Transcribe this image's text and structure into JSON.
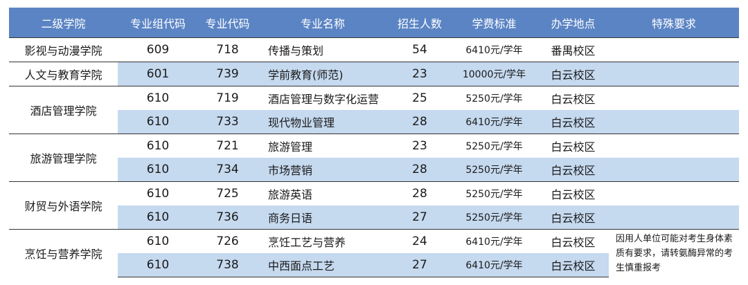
{
  "headers": [
    "二级学院",
    "专业组代码",
    "专业代码",
    "专业名称",
    "招生人数",
    "学费标准",
    "办学地点",
    "特殊要求"
  ],
  "groups": [
    {
      "college": "影视与动漫学院",
      "rows": [
        {
          "group_code": "609",
          "major_code": "718",
          "major_name": "传播与策划",
          "enrollment": "54",
          "tuition": "6410元/学年",
          "campus": "番禺校区"
        }
      ]
    },
    {
      "college": "人文与教育学院",
      "rows": [
        {
          "group_code": "601",
          "major_code": "739",
          "major_name": "学前教育(师范)",
          "enrollment": "23",
          "tuition": "10000元/学年",
          "campus": "白云校区"
        }
      ]
    },
    {
      "college": "酒店管理学院",
      "rows": [
        {
          "group_code": "610",
          "major_code": "719",
          "major_name": "酒店管理与数字化运营",
          "enrollment": "25",
          "tuition": "5250元/学年",
          "campus": "白云校区"
        },
        {
          "group_code": "610",
          "major_code": "733",
          "major_name": "现代物业管理",
          "enrollment": "28",
          "tuition": "6410元/学年",
          "campus": "白云校区"
        }
      ]
    },
    {
      "college": "旅游管理学院",
      "rows": [
        {
          "group_code": "610",
          "major_code": "721",
          "major_name": "旅游管理",
          "enrollment": "23",
          "tuition": "5250元/学年",
          "campus": "白云校区"
        },
        {
          "group_code": "610",
          "major_code": "734",
          "major_name": "市场营销",
          "enrollment": "28",
          "tuition": "5250元/学年",
          "campus": "白云校区"
        }
      ]
    },
    {
      "college": "财贸与外语学院",
      "rows": [
        {
          "group_code": "610",
          "major_code": "725",
          "major_name": "旅游英语",
          "enrollment": "28",
          "tuition": "5250元/学年",
          "campus": "白云校区"
        },
        {
          "group_code": "610",
          "major_code": "736",
          "major_name": "商务日语",
          "enrollment": "27",
          "tuition": "5250元/学年",
          "campus": "白云校区"
        }
      ]
    },
    {
      "college": "烹饪与营养学院",
      "note": "因用人单位可能对考生身体素质有要求，请转氨酶异常的考生慎重报考",
      "rows": [
        {
          "group_code": "610",
          "major_code": "726",
          "major_name": "烹饪工艺与营养",
          "enrollment": "24",
          "tuition": "6410元/学年",
          "campus": "白云校区"
        },
        {
          "group_code": "610",
          "major_code": "738",
          "major_name": "中西面点工艺",
          "enrollment": "27",
          "tuition": "6410元/学年",
          "campus": "白云校区"
        }
      ]
    }
  ]
}
